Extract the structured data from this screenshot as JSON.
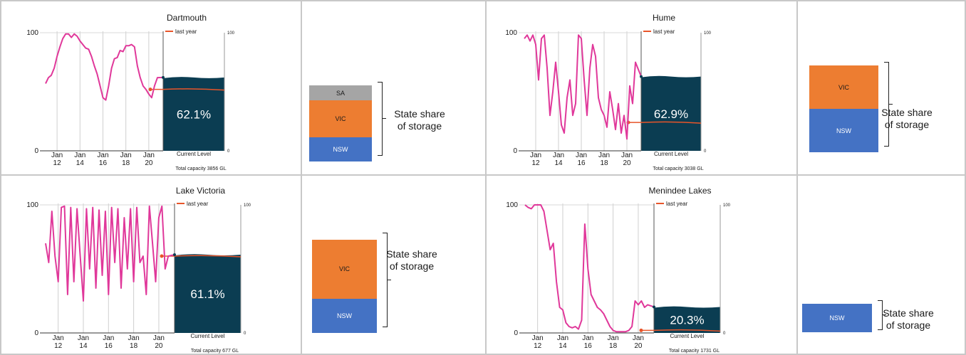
{
  "colors": {
    "storage": "#0b3d52",
    "line": "#e0389a",
    "last_year": "#e8552a",
    "nsw": "#4472c4",
    "vic": "#ed7d31",
    "sa": "#a5a5a5"
  },
  "common": {
    "legend_label": "last year",
    "current_level_label": "Current Level",
    "x_ticks": [
      {
        "m": "Jan",
        "y": "12"
      },
      {
        "m": "Jan",
        "y": "14"
      },
      {
        "m": "Jan",
        "y": "16"
      },
      {
        "m": "Jan",
        "y": "18"
      },
      {
        "m": "Jan",
        "y": "20"
      }
    ],
    "share_title_line1": "State share",
    "share_title_line2": "of storage"
  },
  "chart_data": [
    {
      "type": "line",
      "title": "Dartmouth",
      "x": [
        "2011-01",
        "2011-04",
        "2011-07",
        "2011-10",
        "2012-01",
        "2012-04",
        "2012-07",
        "2012-10",
        "2013-01",
        "2013-04",
        "2013-07",
        "2013-10",
        "2014-01",
        "2014-04",
        "2014-07",
        "2014-10",
        "2015-01",
        "2015-04",
        "2015-07",
        "2015-10",
        "2016-01",
        "2016-04",
        "2016-07",
        "2016-10",
        "2017-01",
        "2017-04",
        "2017-07",
        "2017-10",
        "2018-01",
        "2018-04",
        "2018-07",
        "2018-10",
        "2019-01",
        "2019-04",
        "2019-07",
        "2019-10",
        "2020-01",
        "2020-04",
        "2020-07",
        "2020-10"
      ],
      "values": [
        57,
        62,
        64,
        70,
        80,
        88,
        95,
        99,
        99,
        96,
        99,
        97,
        93,
        90,
        87,
        86,
        80,
        72,
        65,
        55,
        45,
        43,
        55,
        70,
        78,
        79,
        85,
        84,
        89,
        89,
        90,
        88,
        72,
        62,
        55,
        52,
        48,
        45,
        55,
        62
      ],
      "ylim": [
        0,
        100
      ],
      "yticks_left": [
        "0",
        "100"
      ],
      "yticks_right": [
        "0",
        "100"
      ],
      "current_pct": 62.1,
      "current_label": "62.1%",
      "last_year_pct": 52,
      "capacity_label": "Total capacity 3856 GL",
      "state_share": [
        {
          "state": "NSW",
          "pct": 32
        },
        {
          "state": "VIC",
          "pct": 48
        },
        {
          "state": "SA",
          "pct": 20
        }
      ]
    },
    {
      "type": "line",
      "title": "Hume",
      "x": [
        "2011-01",
        "2011-04",
        "2011-07",
        "2011-10",
        "2012-01",
        "2012-04",
        "2012-07",
        "2012-10",
        "2013-01",
        "2013-04",
        "2013-07",
        "2013-10",
        "2014-01",
        "2014-04",
        "2014-07",
        "2014-10",
        "2015-01",
        "2015-04",
        "2015-07",
        "2015-10",
        "2016-01",
        "2016-04",
        "2016-07",
        "2016-10",
        "2017-01",
        "2017-04",
        "2017-07",
        "2017-10",
        "2018-01",
        "2018-04",
        "2018-07",
        "2018-10",
        "2019-01",
        "2019-04",
        "2019-07",
        "2019-10",
        "2020-01",
        "2020-04",
        "2020-07",
        "2020-10"
      ],
      "values": [
        95,
        98,
        93,
        98,
        90,
        60,
        95,
        98,
        70,
        30,
        50,
        75,
        50,
        22,
        15,
        45,
        60,
        30,
        40,
        98,
        95,
        60,
        30,
        70,
        90,
        80,
        45,
        35,
        30,
        20,
        50,
        35,
        18,
        40,
        15,
        30,
        10,
        55,
        40,
        75
      ],
      "ylim": [
        0,
        100
      ],
      "yticks_left": [
        "0",
        "100"
      ],
      "yticks_right": [
        "0",
        "100"
      ],
      "current_pct": 62.9,
      "current_label": "62.9%",
      "last_year_pct": 24,
      "capacity_label": "Total capacity 3038 GL",
      "state_share": [
        {
          "state": "NSW",
          "pct": 50
        },
        {
          "state": "VIC",
          "pct": 50
        }
      ]
    },
    {
      "type": "line",
      "title": "Lake Victoria",
      "x": [
        "2011-01",
        "2011-04",
        "2011-07",
        "2011-10",
        "2012-01",
        "2012-04",
        "2012-07",
        "2012-10",
        "2013-01",
        "2013-04",
        "2013-07",
        "2013-10",
        "2014-01",
        "2014-04",
        "2014-07",
        "2014-10",
        "2015-01",
        "2015-04",
        "2015-07",
        "2015-10",
        "2016-01",
        "2016-04",
        "2016-07",
        "2016-10",
        "2017-01",
        "2017-04",
        "2017-07",
        "2017-10",
        "2018-01",
        "2018-04",
        "2018-07",
        "2018-10",
        "2019-01",
        "2019-04",
        "2019-07",
        "2019-10",
        "2020-01",
        "2020-04",
        "2020-07",
        "2020-10"
      ],
      "values": [
        70,
        55,
        95,
        60,
        40,
        98,
        99,
        30,
        98,
        40,
        97,
        60,
        25,
        97,
        50,
        98,
        35,
        96,
        45,
        95,
        30,
        98,
        55,
        97,
        35,
        90,
        50,
        97,
        40,
        98,
        55,
        60,
        30,
        99,
        70,
        40,
        90,
        99,
        50,
        60
      ],
      "ylim": [
        0,
        100
      ],
      "yticks_left": [
        "0",
        "100"
      ],
      "yticks_right": [
        "0",
        "100"
      ],
      "current_pct": 61.1,
      "current_label": "61.1%",
      "last_year_pct": 60,
      "capacity_label": "Total capacity 677 GL",
      "state_share": [
        {
          "state": "NSW",
          "pct": 37
        },
        {
          "state": "VIC",
          "pct": 63
        }
      ]
    },
    {
      "type": "line",
      "title": "Menindee Lakes",
      "x": [
        "2011-01",
        "2011-04",
        "2011-07",
        "2011-10",
        "2012-01",
        "2012-04",
        "2012-07",
        "2012-10",
        "2013-01",
        "2013-04",
        "2013-07",
        "2013-10",
        "2014-01",
        "2014-04",
        "2014-07",
        "2014-10",
        "2015-01",
        "2015-04",
        "2015-07",
        "2015-10",
        "2016-01",
        "2016-04",
        "2016-07",
        "2016-10",
        "2017-01",
        "2017-04",
        "2017-07",
        "2017-10",
        "2018-01",
        "2018-04",
        "2018-07",
        "2018-10",
        "2019-01",
        "2019-04",
        "2019-07",
        "2019-10",
        "2020-01",
        "2020-04",
        "2020-07",
        "2020-10"
      ],
      "values": [
        100,
        98,
        97,
        100,
        100,
        100,
        95,
        80,
        65,
        70,
        40,
        20,
        18,
        8,
        5,
        4,
        5,
        3,
        10,
        85,
        50,
        30,
        25,
        20,
        18,
        15,
        10,
        5,
        2,
        1,
        1,
        1,
        1,
        2,
        5,
        25,
        22,
        25,
        20,
        22
      ],
      "ylim": [
        0,
        100
      ],
      "yticks_left": [
        "0",
        "100"
      ],
      "yticks_right": [
        "0",
        "100"
      ],
      "current_pct": 20.3,
      "current_label": "20.3%",
      "last_year_pct": 2,
      "capacity_label": "Total capacity 1731 GL",
      "state_share": [
        {
          "state": "NSW",
          "pct": 100
        }
      ]
    }
  ]
}
